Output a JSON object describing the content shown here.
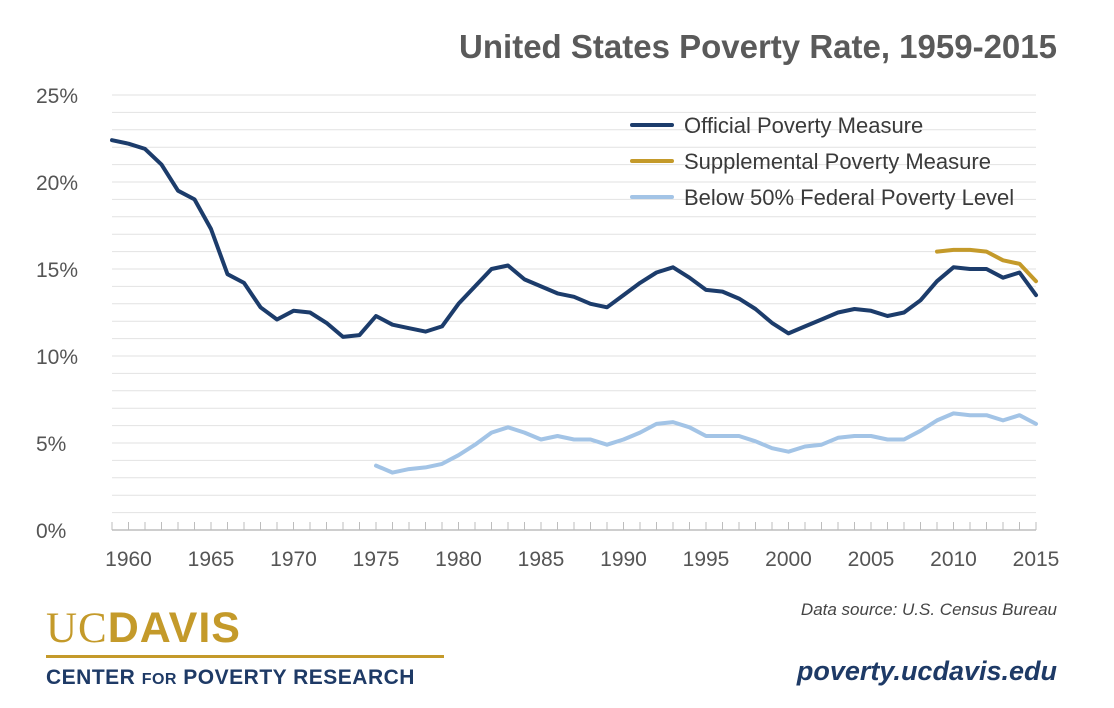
{
  "chart_data": {
    "type": "line",
    "title": "United States Poverty Rate, 1959-2015",
    "xlabel": "",
    "ylabel": "",
    "xlim": [
      1959,
      2015
    ],
    "ylim": [
      0,
      25
    ],
    "x_ticks": [
      1960,
      1965,
      1970,
      1975,
      1980,
      1985,
      1990,
      1995,
      2000,
      2005,
      2010,
      2015
    ],
    "y_ticks": [
      {
        "value": 0,
        "label": "0%"
      },
      {
        "value": 5,
        "label": "5%"
      },
      {
        "value": 10,
        "label": "10%"
      },
      {
        "value": 15,
        "label": "15%"
      },
      {
        "value": 20,
        "label": "20%"
      },
      {
        "value": 25,
        "label": "25%"
      }
    ],
    "grid": true,
    "legend_position": "top-right",
    "series": [
      {
        "name": "Official Poverty Measure",
        "color": "#1c3c6b",
        "x": [
          1959,
          1960,
          1961,
          1962,
          1963,
          1964,
          1965,
          1966,
          1967,
          1968,
          1969,
          1970,
          1971,
          1972,
          1973,
          1974,
          1975,
          1976,
          1977,
          1978,
          1979,
          1980,
          1981,
          1982,
          1983,
          1984,
          1985,
          1986,
          1987,
          1988,
          1989,
          1990,
          1991,
          1992,
          1993,
          1994,
          1995,
          1996,
          1997,
          1998,
          1999,
          2000,
          2001,
          2002,
          2003,
          2004,
          2005,
          2006,
          2007,
          2008,
          2009,
          2010,
          2011,
          2012,
          2013,
          2014,
          2015
        ],
        "y": [
          22.4,
          22.2,
          21.9,
          21.0,
          19.5,
          19.0,
          17.3,
          14.7,
          14.2,
          12.8,
          12.1,
          12.6,
          12.5,
          11.9,
          11.1,
          11.2,
          12.3,
          11.8,
          11.6,
          11.4,
          11.7,
          13.0,
          14.0,
          15.0,
          15.2,
          14.4,
          14.0,
          13.6,
          13.4,
          13.0,
          12.8,
          13.5,
          14.2,
          14.8,
          15.1,
          14.5,
          13.8,
          13.7,
          13.3,
          12.7,
          11.9,
          11.3,
          11.7,
          12.1,
          12.5,
          12.7,
          12.6,
          12.3,
          12.5,
          13.2,
          14.3,
          15.1,
          15.0,
          15.0,
          14.5,
          14.8,
          13.5
        ]
      },
      {
        "name": "Supplemental Poverty Measure",
        "color": "#c49a2a",
        "x": [
          2009,
          2010,
          2011,
          2012,
          2013,
          2014,
          2015
        ],
        "y": [
          16.0,
          16.1,
          16.1,
          16.0,
          15.5,
          15.3,
          14.3
        ]
      },
      {
        "name": "Below 50% Federal Poverty Level",
        "color": "#a3c4e6",
        "x": [
          1975,
          1976,
          1977,
          1978,
          1979,
          1980,
          1981,
          1982,
          1983,
          1984,
          1985,
          1986,
          1987,
          1988,
          1989,
          1990,
          1991,
          1992,
          1993,
          1994,
          1995,
          1996,
          1997,
          1998,
          1999,
          2000,
          2001,
          2002,
          2003,
          2004,
          2005,
          2006,
          2007,
          2008,
          2009,
          2010,
          2011,
          2012,
          2013,
          2014,
          2015
        ],
        "y": [
          3.7,
          3.3,
          3.5,
          3.6,
          3.8,
          4.3,
          4.9,
          5.6,
          5.9,
          5.6,
          5.2,
          5.4,
          5.2,
          5.2,
          4.9,
          5.2,
          5.6,
          6.1,
          6.2,
          5.9,
          5.4,
          5.4,
          5.4,
          5.1,
          4.7,
          4.5,
          4.8,
          4.9,
          5.3,
          5.4,
          5.4,
          5.2,
          5.2,
          5.7,
          6.3,
          6.7,
          6.6,
          6.6,
          6.3,
          6.6,
          6.1
        ]
      }
    ]
  },
  "footer": {
    "source": "Data source: U.S. Census Bureau",
    "website": "poverty.ucdavis.edu",
    "logo": {
      "uc": "UC",
      "davis": "DAVIS",
      "center_prefix": "CENTER ",
      "center_for": "FOR",
      "center_suffix": " POVERTY RESEARCH"
    }
  }
}
